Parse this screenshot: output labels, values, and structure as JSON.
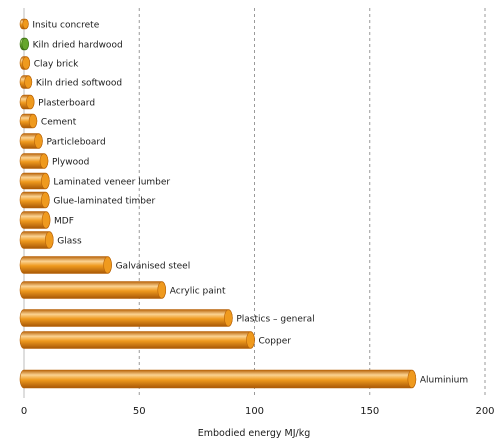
{
  "chart_data": {
    "type": "bar",
    "orientation": "horizontal",
    "style": "3d-cylinder",
    "title": "",
    "xlabel": "Embodied energy MJ/kg",
    "ylabel": "",
    "xlim": [
      0,
      200
    ],
    "xticks": [
      0,
      50,
      100,
      150,
      200
    ],
    "grid": "vertical-dashed",
    "colors": {
      "bar": "#ef9a1e",
      "bar_dark": "#b86308",
      "bar_light": "#fbd291",
      "highlight": "#66a62c",
      "highlight_dark": "#3d7414",
      "highlight_light": "#b4dc7c"
    },
    "categories": [
      "Insitu concrete",
      "Kiln dried hardwood",
      "Clay brick",
      "Kiln dried softwood",
      "Plasterboard",
      "Cement",
      "Particleboard",
      "Plywood",
      "Laminated veneer lumber",
      "Glue-laminated timber",
      "MDF",
      "Glass",
      "Galvanised steel",
      "Acrylic paint",
      "Plastics – general",
      "Copper",
      "Aluminium"
    ],
    "values": [
      1.9,
      2.0,
      2.5,
      3.4,
      4.4,
      5.6,
      8.0,
      10.4,
      11.0,
      11.0,
      11.3,
      12.7,
      38,
      61.5,
      90.4,
      100,
      170
    ],
    "highlighted_category": "Kiln dried hardwood"
  }
}
